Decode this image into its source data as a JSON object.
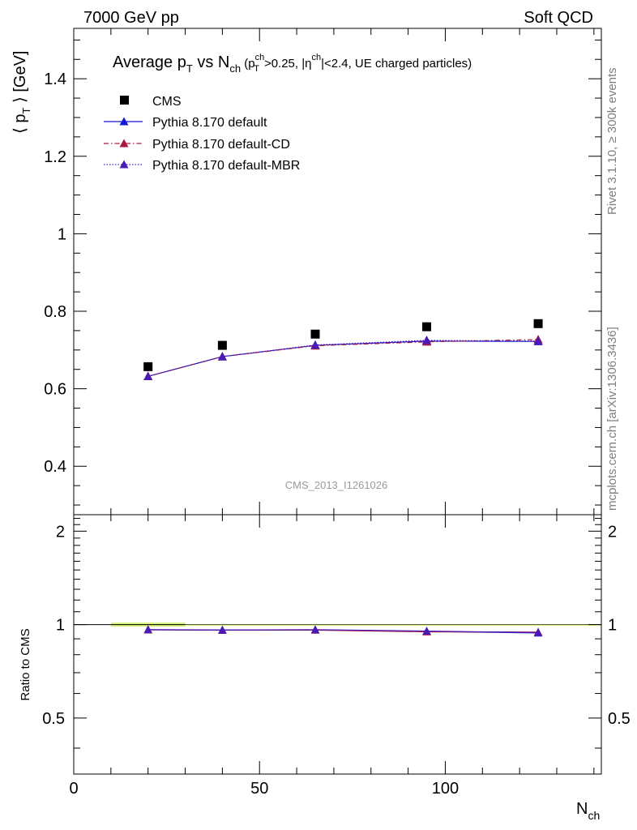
{
  "header": {
    "left": "7000 GeV pp",
    "right": "Soft QCD"
  },
  "side_text": {
    "upper": "Rivet 3.1.10, ≥ 300k events",
    "lower": "mcplots.cern.ch [arXiv:1306.3436]"
  },
  "watermark": "CMS_2013_I1261026",
  "chart_data": [
    {
      "type": "scatter",
      "title": {
        "part1": "Average p",
        "part1_sub": "T",
        "part2": " vs N",
        "part2_sub": "ch",
        "cut_open": " (p",
        "cut_sup": "ch",
        "cut_sub": "T",
        "cut_mid": ">0.25, |η",
        "cut_eta_sup": "ch",
        "cut_end": "|<2.4, UE charged particles)"
      },
      "ylabel": {
        "open": "⟨ p",
        "sub": "T",
        "close": " ⟩ [GeV]"
      },
      "xlim": [
        0,
        142
      ],
      "ylim": [
        0.275,
        1.53
      ],
      "yticks": [
        0.4,
        0.6,
        0.8,
        1,
        1.2,
        1.4
      ],
      "ytick_labels": [
        "0.4",
        "0.6",
        "0.8",
        "1",
        "1.2",
        "1.4"
      ],
      "legend_position": "top-left",
      "x": [
        20,
        40,
        65,
        95,
        125
      ],
      "series": [
        {
          "name": "CMS",
          "marker": "square",
          "color": "#000000",
          "values": [
            0.657,
            0.712,
            0.741,
            0.76,
            0.768
          ]
        },
        {
          "name": "Pythia 8.170 default",
          "marker": "triangle",
          "line": "solid",
          "color": "#1515d8",
          "values": [
            0.632,
            0.683,
            0.712,
            0.723,
            0.722
          ]
        },
        {
          "name": "Pythia 8.170 default-CD",
          "marker": "triangle",
          "line": "dashdot",
          "color": "#a8163c",
          "values": [
            0.632,
            0.683,
            0.711,
            0.721,
            0.727
          ]
        },
        {
          "name": "Pythia 8.170 default-MBR",
          "marker": "triangle",
          "line": "dotted",
          "color": "#4a1ab5",
          "values": [
            0.632,
            0.683,
            0.713,
            0.725,
            0.723
          ]
        }
      ]
    },
    {
      "type": "line",
      "ylabel": "Ratio to CMS",
      "xlabel": {
        "main": "N",
        "sub": "ch"
      },
      "xlim": [
        0,
        142
      ],
      "ylim": [
        0.33,
        2.26
      ],
      "xticks": [
        0,
        50,
        100
      ],
      "xtick_labels": [
        "0",
        "50",
        "100"
      ],
      "yticks": [
        0.5,
        1,
        2
      ],
      "ytick_labels": [
        "0.5",
        "1",
        "2"
      ],
      "band": {
        "x": [
          10,
          30
        ],
        "y": [
          0.985,
          1.015
        ],
        "color": "#d7f27a"
      },
      "x": [
        20,
        40,
        65,
        95,
        125
      ],
      "series": [
        {
          "name": "Pythia 8.170 default",
          "color": "#1515d8",
          "values": [
            0.963,
            0.961,
            0.962,
            0.951,
            0.94
          ]
        },
        {
          "name": "Pythia 8.170 default-CD",
          "color": "#a8163c",
          "values": [
            0.962,
            0.959,
            0.96,
            0.948,
            0.946
          ]
        },
        {
          "name": "Pythia 8.170 default-MBR",
          "color": "#4a1ab5",
          "values": [
            0.963,
            0.96,
            0.963,
            0.953,
            0.942
          ]
        }
      ]
    }
  ]
}
